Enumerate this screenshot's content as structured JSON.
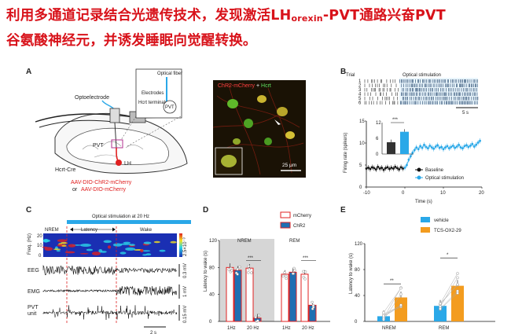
{
  "headline": {
    "line1_pre": "利用多通道记录结合光遗传技术，发现激活LH",
    "line1_sub": "orexin",
    "line1_post": "-PVT通路兴奋PVT",
    "line2": "谷氨酸神经元，并诱发睡眠向觉醒转换。"
  },
  "panel_labels": {
    "a": "A",
    "b": "B",
    "c": "C",
    "d": "D",
    "e": "E"
  },
  "panel_a": {
    "optoelectrode": "Optoelectrode",
    "optical_fiber": "Optical fiber",
    "electrodes": "Electrodes",
    "hcrt_terminals": "Hcrt terminals",
    "pvt_inset": "PVT",
    "pvt": "PVT",
    "lh": "LH",
    "hcrt_cre": "Hcrt-Cre",
    "virus1": "AAV-DIO-ChR2-mCherry",
    "virus_or": "or",
    "virus2": "AAV-DIO-mCherry",
    "micro_title_red": "ChR2-mCherry",
    "micro_title_plus": " + ",
    "micro_title_green": "Hcrt",
    "scale_bar": "25 μm"
  },
  "panel_b": {
    "trial_label": "Trial",
    "trials": [
      "1",
      "2",
      "3",
      "4",
      "5",
      "6"
    ],
    "stim_label": "Optical stimulation",
    "raster_scale": "5 s",
    "inset_sig": "***",
    "legend_baseline": "Baseline",
    "legend_optical": "Optical stimulation",
    "ylabel": "Firing rate (spike/s)",
    "xlabel": "Time (s)"
  },
  "panel_c": {
    "stim_label": "Optical stimulation at 20 Hz",
    "nrem": "NREM",
    "latency": "Latency",
    "wake": "Wake",
    "freq_label": "Freq. (Hz)",
    "freq_ticks": [
      "20",
      "10",
      "0"
    ],
    "colorbar_label": "2.5×10⁻³",
    "eeg": "EEG",
    "emg": "EMG",
    "pvt_unit_line1": "PVT",
    "pvt_unit_line2": "unit",
    "scale_eeg": "0.3 mV",
    "scale_emg": "1 mV",
    "scale_unit": "0.15 mV",
    "time_scale": "2 s"
  },
  "colors": {
    "mcherry": "#e02020",
    "chr2": "#1f6fb2",
    "vehicle": "#2aa8e8",
    "tcs": "#f39c1f",
    "stim_blue": "#2aa8e8",
    "headline_red": "#d8121a"
  },
  "chart_data": [
    {
      "type": "line",
      "title": "",
      "xlabel": "Time (s)",
      "ylabel": "Firing rate (spike/s)",
      "xlim": [
        -10,
        20
      ],
      "ylim": [
        0,
        15
      ],
      "x_ticks": [
        "-10",
        "0",
        "10",
        "20"
      ],
      "y_ticks": [
        "0",
        "5",
        "10",
        "15"
      ],
      "series": [
        {
          "name": "Baseline",
          "x": [
            -10,
            -9.5,
            -9,
            -8.5,
            -8,
            -7.5,
            -7,
            -6.5,
            -6,
            -5.5,
            -5,
            -4.5,
            -4,
            -3.5,
            -3,
            -2.5,
            -2,
            -1.5,
            -1,
            -0.5
          ],
          "values": [
            4.2,
            4.4,
            4.1,
            4.5,
            4.3,
            4.0,
            4.6,
            4.2,
            4.4,
            3.9,
            4.3,
            4.5,
            4.1,
            4.4,
            4.2,
            4.6,
            4.3,
            4.0,
            4.5,
            4.2
          ]
        },
        {
          "name": "Optical stimulation",
          "x": [
            0,
            0.5,
            1,
            1.5,
            2,
            2.5,
            3,
            3.5,
            4,
            4.5,
            5,
            5.5,
            6,
            6.5,
            7,
            7.5,
            8,
            8.5,
            9,
            9.5,
            10,
            10.5,
            11,
            11.5,
            12,
            12.5,
            13,
            13.5,
            14,
            14.5,
            15,
            15.5,
            16,
            16.5,
            17,
            17.5,
            18,
            18.5,
            19,
            19.5
          ],
          "values": [
            4.4,
            5.0,
            6.2,
            7.0,
            7.8,
            8.4,
            9.0,
            8.6,
            9.3,
            8.9,
            9.6,
            9.1,
            8.8,
            9.4,
            9.0,
            8.7,
            9.2,
            9.5,
            8.9,
            9.1,
            8.6,
            9.0,
            9.3,
            8.8,
            9.1,
            9.4,
            8.9,
            9.2,
            9.6,
            9.0,
            8.8,
            9.3,
            9.5,
            9.1,
            9.4,
            9.8,
            9.2,
            9.6,
            10.1,
            10.5
          ]
        }
      ]
    },
    {
      "type": "bar",
      "title": "",
      "categories": [
        "Baseline",
        "Optical stimulation"
      ],
      "values": [
        4.5,
        8.5
      ],
      "ylim": [
        0,
        12
      ],
      "y_ticks": [
        "0",
        "6",
        "12"
      ],
      "significance": "***"
    },
    {
      "type": "bar",
      "title": "",
      "ylabel": "Latency to wake (s)",
      "ylim": [
        0,
        120
      ],
      "y_ticks": [
        "0",
        "40",
        "80",
        "120"
      ],
      "groups": [
        "NREM",
        "REM"
      ],
      "categories": [
        "1Hz",
        "20 Hz",
        "1Hz",
        "20 Hz"
      ],
      "series": [
        {
          "name": "mCherry",
          "values": [
            80,
            79,
            70,
            70
          ]
        },
        {
          "name": "ChR2",
          "values": [
            76,
            5,
            73,
            24
          ]
        }
      ],
      "significance": [
        "***",
        "***"
      ]
    },
    {
      "type": "bar",
      "title": "",
      "ylabel": "Latency to wake (s)",
      "ylim": [
        0,
        120
      ],
      "y_ticks": [
        "0",
        "40",
        "80",
        "120"
      ],
      "categories": [
        "NREM",
        "REM"
      ],
      "series": [
        {
          "name": "vehicle",
          "values": [
            8,
            24
          ]
        },
        {
          "name": "TCS-OX2-29",
          "values": [
            37,
            55
          ]
        }
      ],
      "significance": [
        "**",
        "*"
      ]
    }
  ]
}
